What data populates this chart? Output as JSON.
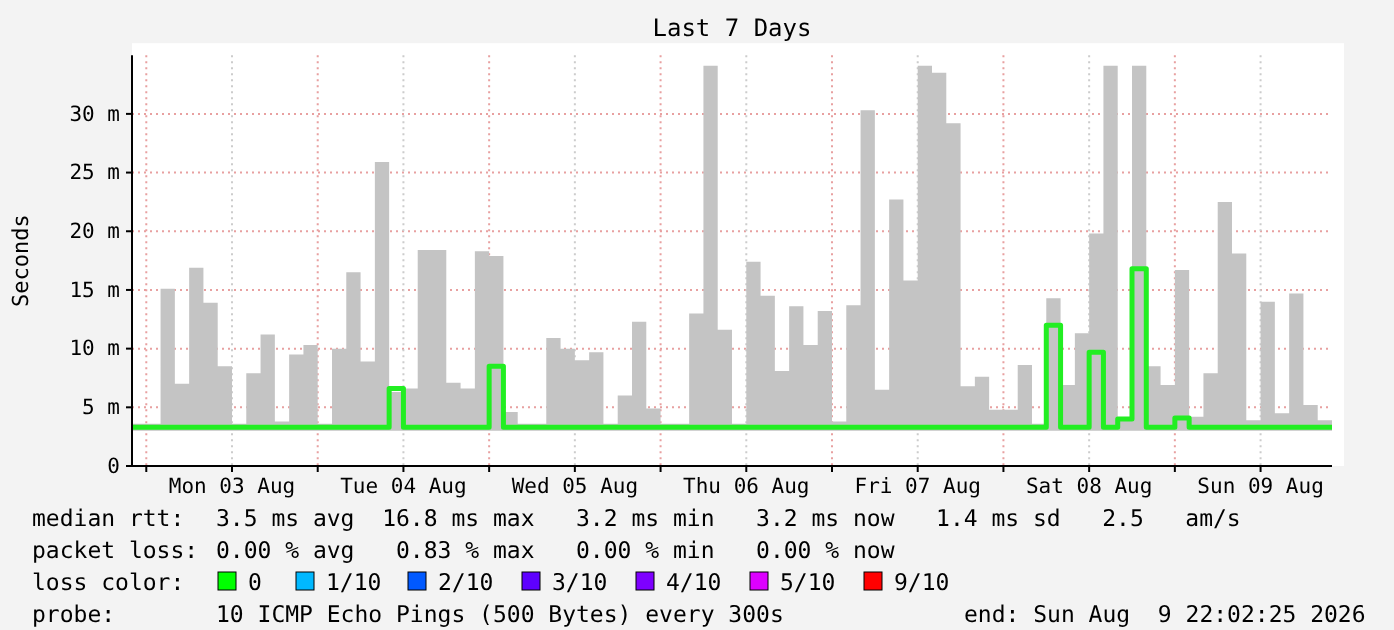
{
  "chart_data": {
    "type": "step",
    "title": "Last 7 Days",
    "ylabel": "Seconds",
    "x": [
      "2026-08-02T22:00",
      "2026-08-03T00:00",
      "2026-08-03T02:00",
      "2026-08-03T04:00",
      "2026-08-03T06:00",
      "2026-08-03T08:00",
      "2026-08-03T10:00",
      "2026-08-03T12:00",
      "2026-08-03T14:00",
      "2026-08-03T16:00",
      "2026-08-03T18:00",
      "2026-08-03T20:00",
      "2026-08-03T22:00",
      "2026-08-04T00:00",
      "2026-08-04T02:00",
      "2026-08-04T04:00",
      "2026-08-04T06:00",
      "2026-08-04T08:00",
      "2026-08-04T10:00",
      "2026-08-04T12:00",
      "2026-08-04T14:00",
      "2026-08-04T16:00",
      "2026-08-04T18:00",
      "2026-08-04T20:00",
      "2026-08-04T22:00",
      "2026-08-05T00:00",
      "2026-08-05T02:00",
      "2026-08-05T04:00",
      "2026-08-05T06:00",
      "2026-08-05T08:00",
      "2026-08-05T10:00",
      "2026-08-05T12:00",
      "2026-08-05T14:00",
      "2026-08-05T16:00",
      "2026-08-05T18:00",
      "2026-08-05T20:00",
      "2026-08-05T22:00",
      "2026-08-06T00:00",
      "2026-08-06T02:00",
      "2026-08-06T04:00",
      "2026-08-06T06:00",
      "2026-08-06T08:00",
      "2026-08-06T10:00",
      "2026-08-06T12:00",
      "2026-08-06T14:00",
      "2026-08-06T16:00",
      "2026-08-06T18:00",
      "2026-08-06T20:00",
      "2026-08-06T22:00",
      "2026-08-07T00:00",
      "2026-08-07T02:00",
      "2026-08-07T04:00",
      "2026-08-07T06:00",
      "2026-08-07T08:00",
      "2026-08-07T10:00",
      "2026-08-07T12:00",
      "2026-08-07T14:00",
      "2026-08-07T16:00",
      "2026-08-07T18:00",
      "2026-08-07T20:00",
      "2026-08-07T22:00",
      "2026-08-08T00:00",
      "2026-08-08T02:00",
      "2026-08-08T04:00",
      "2026-08-08T06:00",
      "2026-08-08T08:00",
      "2026-08-08T10:00",
      "2026-08-08T12:00",
      "2026-08-08T14:00",
      "2026-08-08T16:00",
      "2026-08-08T18:00",
      "2026-08-08T20:00",
      "2026-08-08T22:00",
      "2026-08-09T00:00",
      "2026-08-09T02:00",
      "2026-08-09T04:00",
      "2026-08-09T06:00",
      "2026-08-09T08:00",
      "2026-08-09T10:00",
      "2026-08-09T12:00",
      "2026-08-09T14:00",
      "2026-08-09T16:00",
      "2026-08-09T18:00",
      "2026-08-09T20:00",
      "2026-08-09T22:00"
    ],
    "series": [
      {
        "color": "#22ee22",
        "values": [
          3.3,
          3.3,
          3.3,
          3.3,
          3.3,
          3.3,
          3.3,
          3.3,
          3.3,
          3.3,
          3.3,
          3.3,
          3.3,
          3.3,
          3.3,
          3.3,
          3.3,
          3.3,
          6.6,
          3.3,
          3.3,
          3.3,
          3.3,
          3.3,
          3.3,
          8.5,
          3.3,
          3.3,
          3.3,
          3.3,
          3.3,
          3.3,
          3.3,
          3.3,
          3.3,
          3.3,
          3.3,
          3.3,
          3.3,
          3.3,
          3.3,
          3.3,
          3.3,
          3.3,
          3.3,
          3.3,
          3.3,
          3.3,
          3.3,
          3.3,
          3.3,
          3.3,
          3.3,
          3.3,
          3.3,
          3.3,
          3.3,
          3.3,
          3.3,
          3.3,
          3.3,
          3.3,
          3.3,
          3.3,
          12.0,
          3.3,
          3.3,
          9.7,
          3.3,
          4.0,
          16.8,
          3.3,
          3.3,
          4.1,
          3.3,
          3.3,
          3.3,
          3.3,
          3.3,
          3.3,
          3.3,
          3.3,
          3.3,
          3.3,
          3.3
        ],
        "lower": [
          3.0,
          3.0,
          3.0,
          3.0,
          3.0,
          3.0,
          3.0,
          3.0,
          3.0,
          3.0,
          3.0,
          3.0,
          3.0,
          3.0,
          3.0,
          3.0,
          3.0,
          3.0,
          3.0,
          3.0,
          3.0,
          3.0,
          3.0,
          3.0,
          3.0,
          3.0,
          3.0,
          3.0,
          3.0,
          3.0,
          3.0,
          3.0,
          3.0,
          3.0,
          3.0,
          3.0,
          3.0,
          3.0,
          3.0,
          3.0,
          3.0,
          3.0,
          3.0,
          3.0,
          3.0,
          3.0,
          3.0,
          3.0,
          3.0,
          3.0,
          3.0,
          3.0,
          3.0,
          3.0,
          3.0,
          3.0,
          3.0,
          3.0,
          3.0,
          3.0,
          3.0,
          3.0,
          3.0,
          3.0,
          3.0,
          3.0,
          3.0,
          3.0,
          3.0,
          3.0,
          3.0,
          3.0,
          3.0,
          3.0,
          3.0,
          3.0,
          3.0,
          3.0,
          3.0,
          3.0,
          3.0,
          3.0,
          3.0,
          3.0,
          3.0
        ],
        "upper": [
          3.6,
          3.6,
          15.1,
          7.0,
          16.9,
          13.9,
          8.5,
          3.6,
          7.9,
          11.2,
          3.8,
          9.5,
          10.3,
          3.6,
          10.0,
          16.5,
          8.9,
          25.9,
          6.3,
          6.6,
          18.4,
          18.4,
          7.1,
          6.6,
          18.3,
          17.9,
          4.6,
          3.6,
          3.6,
          10.9,
          10.0,
          9.0,
          9.7,
          3.6,
          6.0,
          12.3,
          4.9,
          3.6,
          3.6,
          13.0,
          34.1,
          11.6,
          3.6,
          17.4,
          14.5,
          8.1,
          13.6,
          10.3,
          13.2,
          3.8,
          13.7,
          30.3,
          6.5,
          22.7,
          15.8,
          34.1,
          33.5,
          29.2,
          6.8,
          7.6,
          4.8,
          4.8,
          8.6,
          3.6,
          14.3,
          6.9,
          11.3,
          19.8,
          34.1,
          4.0,
          34.1,
          8.5,
          6.9,
          16.7,
          4.2,
          7.9,
          22.5,
          18.1,
          3.9,
          14.0,
          4.5,
          14.7,
          5.2,
          3.9,
          3.9
        ]
      }
    ],
    "xlim": [
      "2026-08-02T22:00",
      "2026-08-09T22:00"
    ],
    "xticks": [
      {
        "value": "2026-08-03T00:00",
        "label": null
      },
      {
        "value": "2026-08-03T12:00",
        "label": "Mon 03 Aug"
      },
      {
        "value": "2026-08-04T00:00",
        "label": null
      },
      {
        "value": "2026-08-04T12:00",
        "label": "Tue 04 Aug"
      },
      {
        "value": "2026-08-05T00:00",
        "label": null
      },
      {
        "value": "2026-08-05T12:00",
        "label": "Wed 05 Aug"
      },
      {
        "value": "2026-08-06T00:00",
        "label": null
      },
      {
        "value": "2026-08-06T12:00",
        "label": "Thu 06 Aug"
      },
      {
        "value": "2026-08-07T00:00",
        "label": null
      },
      {
        "value": "2026-08-07T12:00",
        "label": "Fri 07 Aug"
      },
      {
        "value": "2026-08-08T00:00",
        "label": null
      },
      {
        "value": "2026-08-08T12:00",
        "label": "Sat 08 Aug"
      },
      {
        "value": "2026-08-09T00:00",
        "label": null
      },
      {
        "value": "2026-08-09T12:00",
        "label": "Sun 09 Aug"
      }
    ],
    "ylim": [
      0,
      35
    ],
    "yticks": [
      0,
      {
        "value": 5,
        "label": "5 m"
      },
      {
        "value": 10,
        "label": "10 m"
      },
      {
        "value": 15,
        "label": "15 m"
      },
      {
        "value": 20,
        "label": "20 m"
      },
      {
        "value": 25,
        "label": "25 m"
      },
      {
        "value": 30,
        "label": "30 m"
      }
    ],
    "grid": true,
    "annotations": [
      "median rtt:",
      "3.5 ms avg  16.8 ms max   3.2 ms min   3.2 ms now   1.4 ms sd   2.5   am/s",
      "packet loss:",
      "0.00 % avg   0.83 % max   0.00 % min   0.00 % now",
      "loss color:",
      "0",
      "1/10",
      "2/10",
      "3/10",
      "4/10",
      "5/10",
      "9/10",
      "probe:",
      "10 ICMP Echo Pings (500 Bytes) every 300s",
      "end: Sun Aug  9 22:02:25 2026"
    ]
  }
}
